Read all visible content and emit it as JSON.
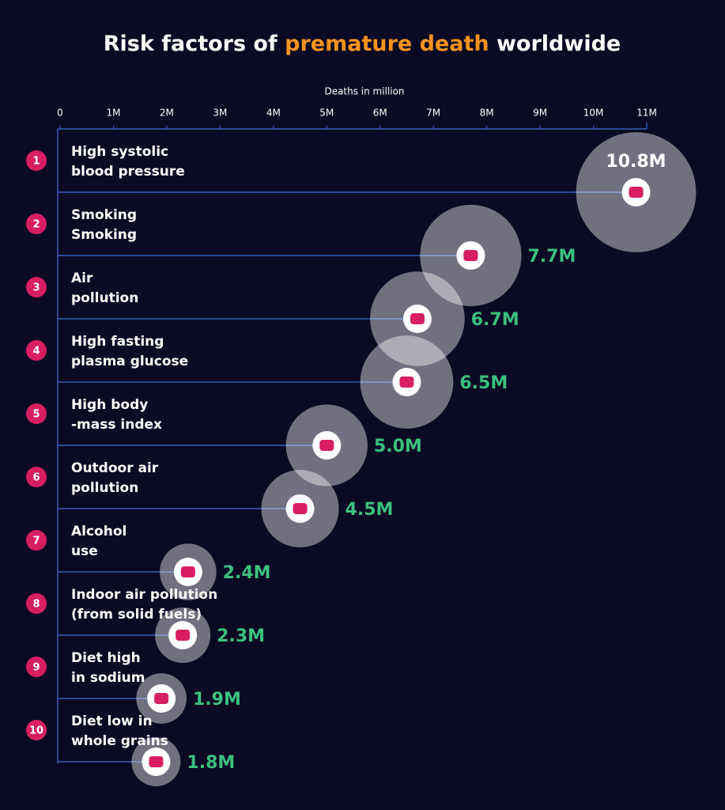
{
  "chart_data": {
    "type": "bubble-lollipop",
    "title": {
      "pre": "Risk factors of ",
      "highlight": "premature death",
      "post": " worldwide"
    },
    "x_label": "Deaths in million",
    "ranks": [
      1,
      2,
      3,
      4,
      5,
      6,
      7,
      8,
      9,
      10
    ],
    "categories": [
      [
        "High systolic",
        "blood pressure"
      ],
      [
        "Smoking",
        "Smoking"
      ],
      [
        "Air",
        "pollution"
      ],
      [
        "High fasting",
        "plasma glucose"
      ],
      [
        "High body",
        "-mass index"
      ],
      [
        "Outdoor air",
        "pollution"
      ],
      [
        "Alcohol",
        "use"
      ],
      [
        "Indoor air pollution",
        "(from solid fuels)"
      ],
      [
        "Diet high",
        "in sodium"
      ],
      [
        "Diet low in",
        "whole grains"
      ]
    ],
    "values": [
      10.8,
      7.7,
      6.7,
      6.5,
      5.0,
      4.5,
      2.4,
      2.3,
      1.9,
      1.8
    ],
    "value_labels": [
      "10.8M",
      "7.7M",
      "6.7M",
      "6.5M",
      "5.0M",
      "4.5M",
      "2.4M",
      "2.3M",
      "1.9M",
      "1.8M"
    ],
    "xlim": [
      0,
      11
    ],
    "xticks": [
      0,
      {
        "value": 1,
        "label": "1M"
      },
      {
        "value": 2,
        "label": "2M"
      },
      {
        "value": 3,
        "label": "3M"
      },
      {
        "value": 4,
        "label": "4M"
      },
      {
        "value": 5,
        "label": "5M"
      },
      {
        "value": 6,
        "label": "6M"
      },
      {
        "value": 7,
        "label": "7M"
      },
      {
        "value": 8,
        "label": "8M"
      },
      {
        "value": 9,
        "label": "9M"
      },
      {
        "value": 10,
        "label": "10M"
      },
      {
        "value": 11,
        "label": "11M"
      }
    ],
    "colors": {
      "background": "#0b0a24",
      "highlight": "#f7931e",
      "rank": "#d81e63",
      "bubble": "#ffffff",
      "value_label": "#3cc07f",
      "line": "#3a6fd8"
    }
  }
}
